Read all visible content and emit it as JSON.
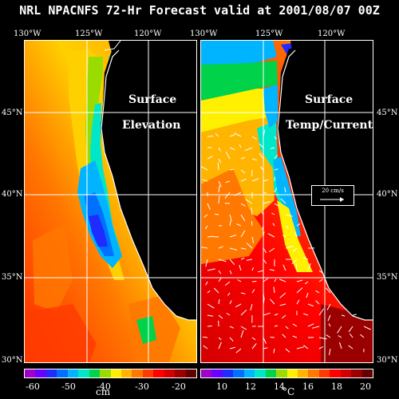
{
  "title": "NRL NPACNFS 72-Hr Forecast valid at 2001/08/07 00Z",
  "lon_ticks": [
    "130°W",
    "125°W",
    "120°W"
  ],
  "lat_ticks": [
    "45°N",
    "40°N",
    "35°N",
    "30°N"
  ],
  "left_panel": {
    "title_line1": "Surface",
    "title_line2": "Elevation",
    "colorbar_ticks": [
      "-60",
      "-50",
      "-40",
      "-30",
      "-20"
    ],
    "unit": "cm"
  },
  "right_panel": {
    "title_line1": "Surface",
    "title_line2": "Temp/Current",
    "colorbar_ticks": [
      "10",
      "12",
      "14",
      "16",
      "18",
      "20"
    ],
    "unit": "°C",
    "reference_vector": "20 cm/s"
  },
  "colors": {
    "background": "#000000",
    "land": "#000000",
    "grid": "#ffffff"
  },
  "colorbar_colors": [
    "#a000c8",
    "#6a00ff",
    "#1e2cff",
    "#0070ff",
    "#00b4ff",
    "#00e6c8",
    "#00d24a",
    "#9bdc00",
    "#fff000",
    "#ffb400",
    "#ff7800",
    "#ff3c00",
    "#ff0000",
    "#d20000",
    "#9b0000",
    "#640000"
  ]
}
